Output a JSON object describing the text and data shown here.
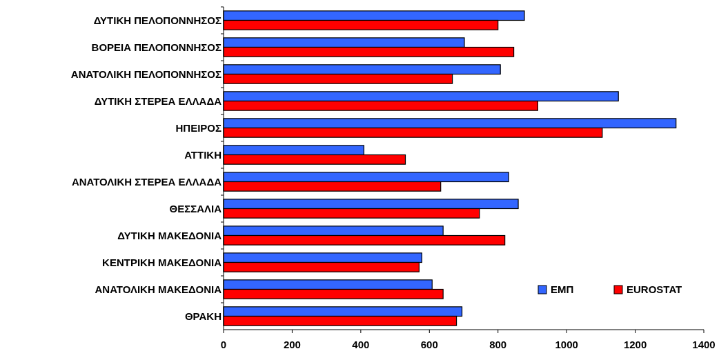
{
  "chart_data": {
    "type": "bar",
    "orientation": "horizontal",
    "categories": [
      "ΔΥΤΙΚΗ ΠΕΛΟΠΟΝΝΗΣΟΣ",
      "ΒΟΡΕΙΑ ΠΕΛΟΠΟΝΝΗΣΟΣ",
      "ΑΝΑΤΟΛΙΚΗ ΠΕΛΟΠΟΝΝΗΣΟΣ",
      "ΔΥΤΙΚΗ ΣΤΕΡΕΑ ΕΛΛΑΔΑ",
      "ΗΠΕΙΡΟΣ",
      "ΑΤΤΙΚΗ",
      "ΑΝΑΤΟΛΙΚΗ ΣΤΕΡΕΑ ΕΛΛΑΔΑ",
      "ΘΕΣΣΑΛΙΑ",
      "ΔΥΤΙΚΗ ΜΑΚΕΔΟΝΙΑ",
      "ΚΕΝΤΡΙΚΗ ΜΑΚΕΔΟΝΙΑ",
      "ΑΝΑΤΟΛΙΚΗ ΜΑΚΕΔΟΝΙΑ",
      "ΘΡΑΚΗ"
    ],
    "series": [
      {
        "name": "ΕΜΠ",
        "color": "#3366ff",
        "values": [
          877,
          702,
          807,
          1151,
          1319,
          409,
          831,
          859,
          640,
          578,
          608,
          695
        ]
      },
      {
        "name": "EUROSTAT",
        "color": "#ff0000",
        "values": [
          800,
          846,
          667,
          916,
          1104,
          530,
          633,
          746,
          820,
          570,
          640,
          679
        ]
      }
    ],
    "xlim": [
      0,
      1400
    ],
    "xticks": [
      0,
      200,
      400,
      600,
      800,
      1000,
      1200,
      1400
    ],
    "legend": "bottom right",
    "grid": false
  }
}
